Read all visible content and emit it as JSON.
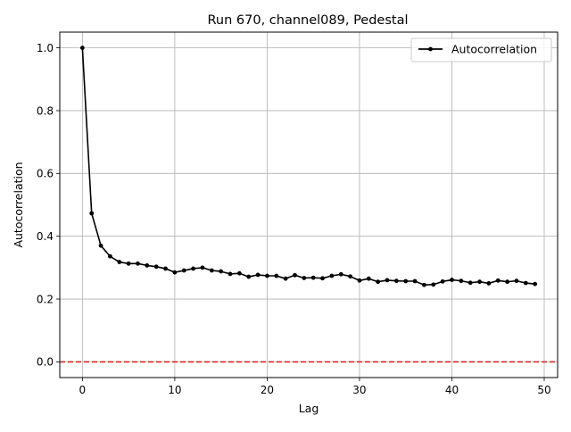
{
  "chart_data": {
    "type": "line",
    "title": "Run 670, channel089, Pedestal",
    "xlabel": "Lag",
    "ylabel": "Autocorrelation",
    "xlim": [
      -2.45,
      51.45
    ],
    "ylim": [
      -0.05,
      1.05
    ],
    "xticks": [
      0,
      10,
      20,
      30,
      40,
      50
    ],
    "yticks": [
      0.0,
      0.2,
      0.4,
      0.6,
      0.8,
      1.0
    ],
    "grid": true,
    "legend": {
      "position": "top-right",
      "entries": [
        "Autocorrelation"
      ]
    },
    "reference_line": {
      "y": 0.0,
      "color": "#d62728",
      "style": "dashed"
    },
    "series": [
      {
        "name": "Autocorrelation",
        "color": "#000000",
        "x": [
          0,
          1,
          2,
          3,
          4,
          5,
          6,
          7,
          8,
          9,
          10,
          11,
          12,
          13,
          14,
          15,
          16,
          17,
          18,
          19,
          20,
          21,
          22,
          23,
          24,
          25,
          26,
          27,
          28,
          29,
          30,
          31,
          32,
          33,
          34,
          35,
          36,
          37,
          38,
          39,
          40,
          41,
          42,
          43,
          44,
          45,
          46,
          47,
          48,
          49
        ],
        "y": [
          1.0,
          0.473,
          0.37,
          0.336,
          0.318,
          0.313,
          0.313,
          0.307,
          0.303,
          0.297,
          0.285,
          0.291,
          0.297,
          0.3,
          0.291,
          0.288,
          0.28,
          0.282,
          0.271,
          0.277,
          0.274,
          0.274,
          0.265,
          0.276,
          0.267,
          0.268,
          0.266,
          0.274,
          0.279,
          0.272,
          0.259,
          0.265,
          0.255,
          0.26,
          0.258,
          0.257,
          0.257,
          0.245,
          0.246,
          0.256,
          0.261,
          0.258,
          0.252,
          0.255,
          0.25,
          0.259,
          0.255,
          0.258,
          0.251,
          0.248
        ]
      }
    ]
  }
}
